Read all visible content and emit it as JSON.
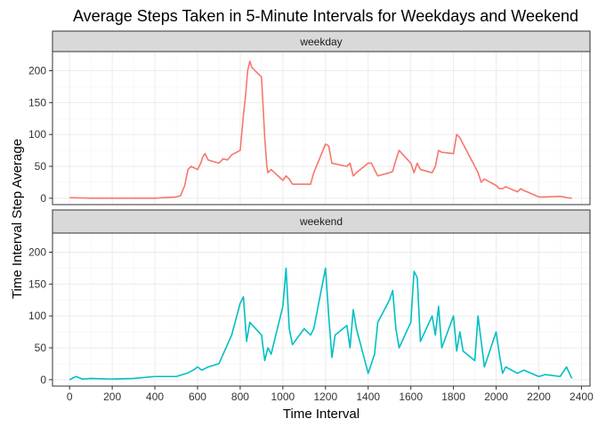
{
  "chart_data": {
    "type": "line",
    "title": "Average Steps Taken in 5-Minute Intervals for Weekdays and Weekend",
    "xlabel": "Time Interval",
    "ylabel": "Time Interval Step Average",
    "xlim": [
      -80,
      2440
    ],
    "ylim": [
      -10,
      230
    ],
    "xticks": [
      0,
      200,
      400,
      600,
      800,
      1000,
      1200,
      1400,
      1600,
      1800,
      2000,
      2200,
      2400
    ],
    "yticks": [
      0,
      50,
      100,
      150,
      200
    ],
    "grid": true,
    "legend": "none",
    "panels": [
      {
        "name": "weekday",
        "color": "#F8766D",
        "x": [
          0,
          100,
          200,
          300,
          400,
          500,
          520,
          540,
          555,
          570,
          600,
          615,
          625,
          635,
          650,
          700,
          720,
          740,
          760,
          800,
          815,
          825,
          835,
          845,
          855,
          900,
          915,
          925,
          930,
          945,
          1000,
          1015,
          1030,
          1045,
          1100,
          1130,
          1145,
          1200,
          1215,
          1230,
          1300,
          1315,
          1330,
          1345,
          1400,
          1415,
          1430,
          1445,
          1500,
          1515,
          1530,
          1545,
          1600,
          1615,
          1630,
          1645,
          1700,
          1715,
          1730,
          1745,
          1800,
          1815,
          1830,
          1845,
          1900,
          1915,
          1930,
          1945,
          2000,
          2015,
          2030,
          2045,
          2100,
          2115,
          2130,
          2145,
          2200,
          2230,
          2300,
          2330,
          2355
        ],
        "y": [
          1,
          0,
          0,
          0,
          0,
          2,
          4,
          20,
          45,
          50,
          45,
          55,
          65,
          70,
          60,
          55,
          62,
          60,
          68,
          75,
          130,
          160,
          200,
          215,
          205,
          190,
          95,
          50,
          40,
          45,
          28,
          35,
          30,
          22,
          22,
          22,
          40,
          85,
          82,
          55,
          50,
          55,
          35,
          40,
          55,
          55,
          45,
          35,
          40,
          42,
          60,
          75,
          55,
          40,
          55,
          45,
          40,
          50,
          75,
          72,
          70,
          100,
          95,
          85,
          50,
          40,
          25,
          30,
          20,
          15,
          15,
          18,
          10,
          15,
          12,
          10,
          2,
          2,
          3,
          1,
          0
        ]
      },
      {
        "name": "weekend",
        "color": "#00BFC4",
        "x": [
          0,
          30,
          60,
          100,
          200,
          300,
          400,
          500,
          550,
          580,
          600,
          620,
          650,
          700,
          720,
          740,
          760,
          800,
          815,
          830,
          845,
          900,
          915,
          930,
          945,
          1000,
          1015,
          1030,
          1045,
          1100,
          1130,
          1145,
          1200,
          1215,
          1230,
          1245,
          1300,
          1315,
          1330,
          1345,
          1400,
          1415,
          1430,
          1445,
          1500,
          1515,
          1530,
          1545,
          1600,
          1615,
          1630,
          1645,
          1700,
          1715,
          1730,
          1745,
          1800,
          1815,
          1830,
          1845,
          1900,
          1915,
          1930,
          1945,
          2000,
          2015,
          2030,
          2045,
          2100,
          2130,
          2200,
          2230,
          2300,
          2330,
          2355
        ],
        "y": [
          0,
          5,
          1,
          2,
          1,
          2,
          5,
          5,
          10,
          15,
          20,
          15,
          20,
          25,
          40,
          55,
          70,
          120,
          130,
          60,
          90,
          70,
          30,
          50,
          40,
          115,
          175,
          80,
          55,
          80,
          70,
          80,
          175,
          100,
          35,
          70,
          85,
          50,
          110,
          80,
          10,
          25,
          40,
          90,
          125,
          140,
          80,
          50,
          90,
          170,
          160,
          60,
          100,
          70,
          115,
          50,
          100,
          45,
          75,
          45,
          30,
          100,
          60,
          20,
          75,
          40,
          10,
          20,
          10,
          15,
          5,
          8,
          5,
          20,
          2
        ]
      }
    ]
  }
}
